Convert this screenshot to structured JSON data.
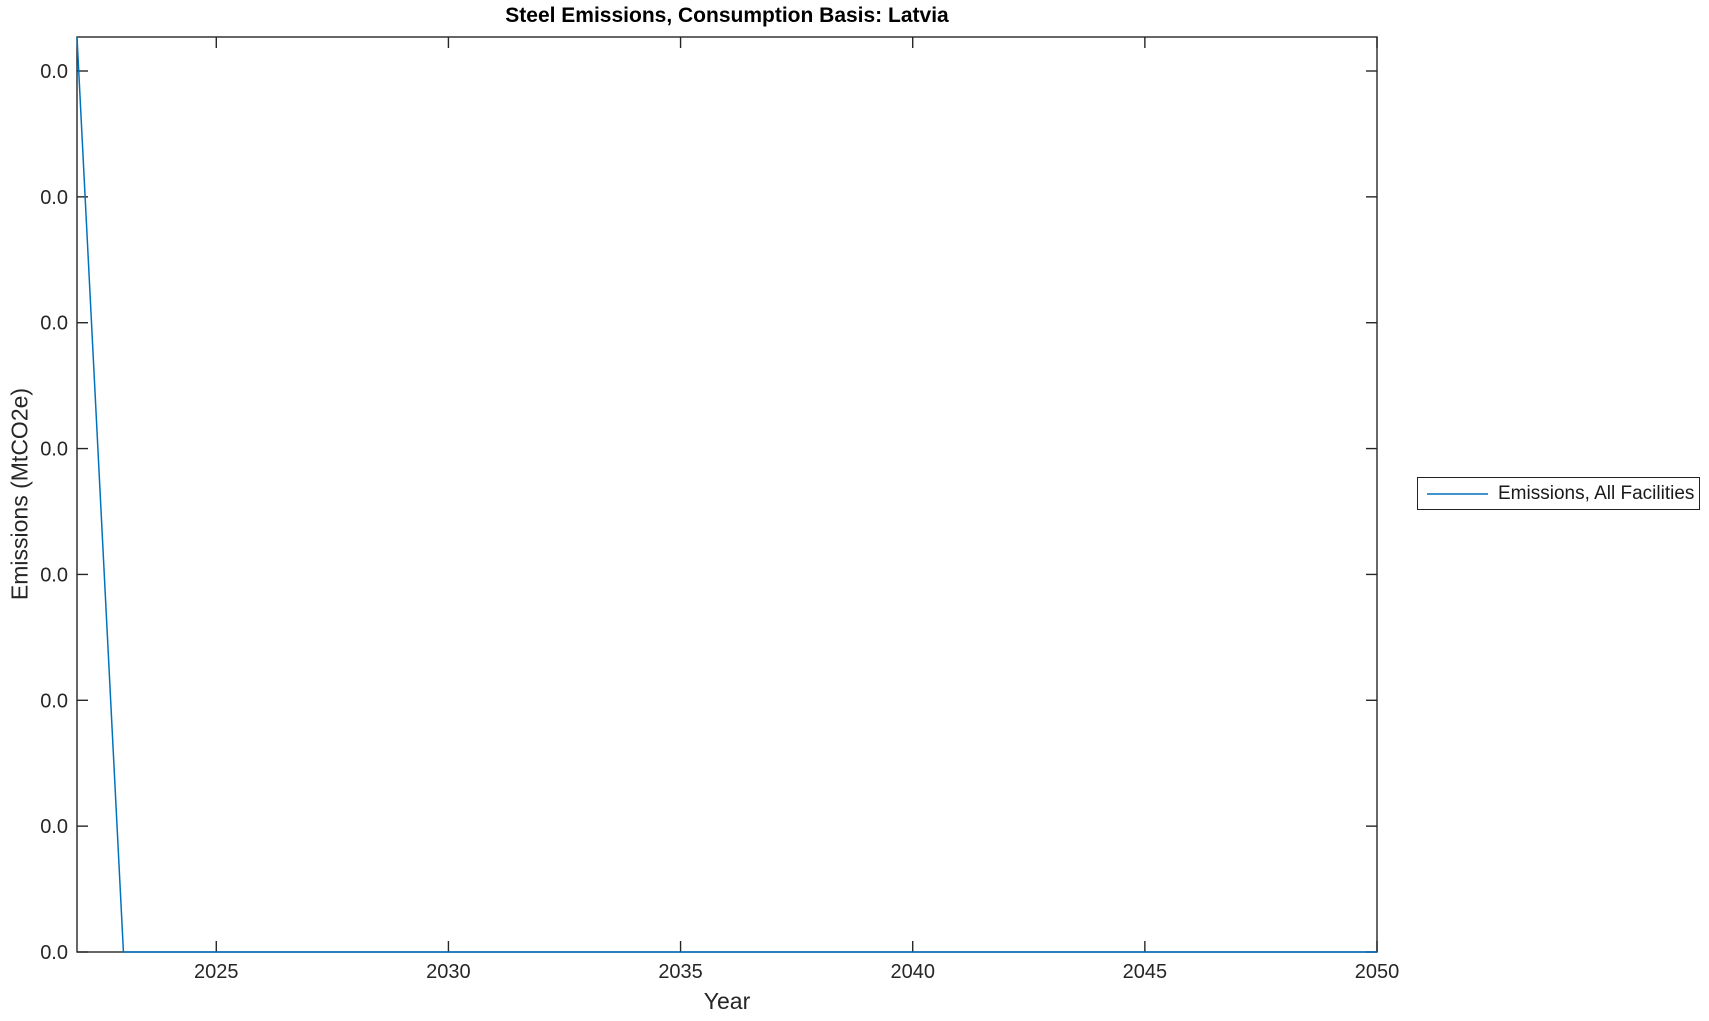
{
  "chart_data": {
    "type": "line",
    "title": "Steel Emissions, Consumption Basis: Latvia",
    "xlabel": "Year",
    "ylabel": "Emissions (MtCO2e)",
    "xlim": [
      2022,
      2050
    ],
    "x_ticks": [
      2025,
      2030,
      2035,
      2040,
      2045,
      2050
    ],
    "y_tick_labels_bottom_to_top": [
      "0.0",
      "0.0",
      "0.0",
      "0.0",
      "0.0",
      "0.0",
      "0.0",
      "0.0"
    ],
    "grid": false,
    "legend": {
      "position": "outside-right",
      "entries": [
        "Emissions, All Facilities"
      ]
    },
    "series": [
      {
        "name": "Emissions, All Facilities",
        "color": "#0072BD",
        "x": [
          2022,
          2023,
          2050
        ],
        "y_axis_fraction": [
          1.0,
          0.0,
          0.0
        ]
      }
    ],
    "colors": {
      "axis": "#262626",
      "line": "#0072BD",
      "background": "#ffffff"
    }
  }
}
